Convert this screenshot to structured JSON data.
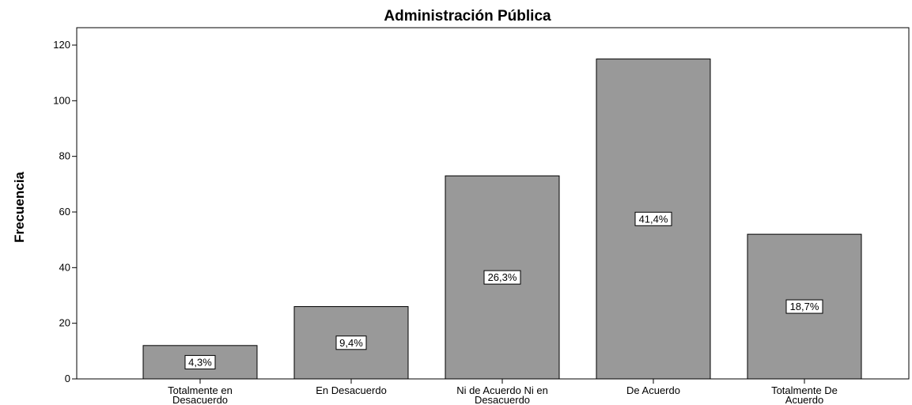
{
  "chart_data": {
    "type": "bar",
    "title": "Administración Pública",
    "xlabel": "",
    "ylabel": "Frecuencia",
    "ylim": [
      0,
      125
    ],
    "yticks": [
      0,
      20,
      40,
      60,
      80,
      100,
      120
    ],
    "grid": false,
    "categories": [
      [
        "Totalmente en",
        "Desacuerdo"
      ],
      [
        "En Desacuerdo"
      ],
      [
        "Ni de Acuerdo Ni en",
        "Desacuerdo"
      ],
      [
        "De Acuerdo"
      ],
      [
        "Totalmente De",
        "Acuerdo"
      ]
    ],
    "values": [
      12,
      26,
      73,
      115,
      52
    ],
    "data_labels": [
      "4,3%",
      "9,4%",
      "26,3%",
      "41,4%",
      "18,7%"
    ],
    "bar_color": "#999999",
    "bar_edge_color": "#000000"
  }
}
